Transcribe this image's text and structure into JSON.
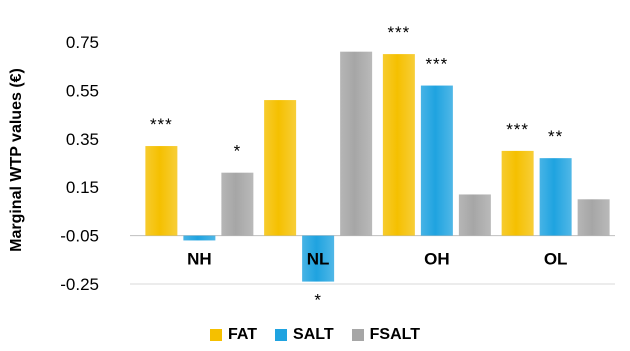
{
  "chart_data": {
    "type": "bar",
    "ylabel": "Marginal WTP values (€)",
    "categories": [
      "NH",
      "NL",
      "OH",
      "OL"
    ],
    "series": [
      {
        "name": "FAT",
        "color": "#F5C000",
        "values": [
          0.32,
          0.51,
          0.7,
          0.3
        ]
      },
      {
        "name": "SALT",
        "color": "#1FA3E0",
        "values": [
          -0.07,
          -0.24,
          0.57,
          0.27
        ]
      },
      {
        "name": "FSALT",
        "color": "#A6A6A6",
        "values": [
          0.21,
          0.71,
          0.12,
          0.1
        ]
      }
    ],
    "ylim": [
      -0.25,
      0.75
    ],
    "yticks": [
      "0.75",
      "0.55",
      "0.35",
      "0.15",
      "-0.05",
      "-0.25"
    ],
    "ytick_values": [
      0.75,
      0.55,
      0.35,
      0.15,
      -0.05,
      -0.25
    ],
    "annotations": [
      {
        "category": "NH",
        "series": "FAT",
        "text": "***"
      },
      {
        "category": "NH",
        "series": "FSALT",
        "text": "*"
      },
      {
        "category": "NL",
        "series": "SALT",
        "text": "*"
      },
      {
        "category": "OH",
        "series": "FAT",
        "text": "***"
      },
      {
        "category": "OH",
        "series": "SALT",
        "text": "***"
      },
      {
        "category": "OL",
        "series": "FAT",
        "text": "***"
      },
      {
        "category": "OL",
        "series": "SALT",
        "text": "**"
      }
    ],
    "legend_position": "bottom",
    "grid": false
  }
}
